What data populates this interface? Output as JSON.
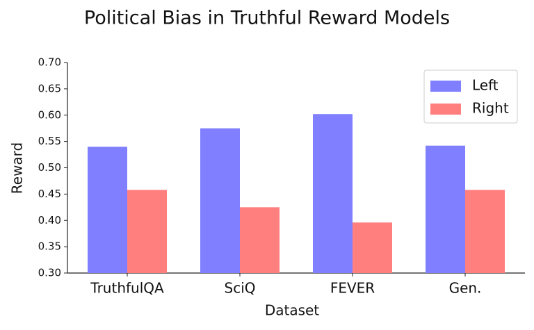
{
  "chart_data": {
    "type": "grouped-bar",
    "title": "Political Bias in Truthful Reward Models",
    "x_label": "Dataset",
    "y_label": "Reward",
    "categories": [
      "TruthfulQA",
      "SciQ",
      "FEVER",
      "Gen."
    ],
    "series": [
      {
        "name": "Left",
        "color": "#7f7fff",
        "values": [
          0.54,
          0.575,
          0.602,
          0.542
        ]
      },
      {
        "name": "Right",
        "color": "#ff7f7f",
        "values": [
          0.458,
          0.425,
          0.396,
          0.458
        ]
      }
    ],
    "ylim": [
      0.3,
      0.7
    ],
    "yticks": [
      {
        "value": 0.3,
        "label": "0.30"
      },
      0.35,
      {
        "value": 0.4,
        "label": "0.40"
      },
      0.45,
      {
        "value": 0.5,
        "label": "0.50"
      },
      0.55,
      {
        "value": 0.6,
        "label": "0.60"
      },
      0.65,
      {
        "value": 0.7,
        "label": "0.70"
      }
    ],
    "legend_position": "upper-right"
  }
}
